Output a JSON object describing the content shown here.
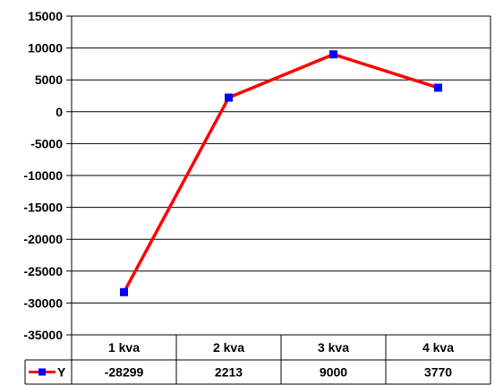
{
  "chart_data": {
    "type": "line",
    "categories": [
      "1 kva",
      "2 kva",
      "3 kva",
      "4 kva"
    ],
    "series": [
      {
        "name": "Y",
        "values": [
          -28299,
          2213,
          9000,
          3770
        ],
        "color": "#ff0000",
        "marker_color": "#0000ff",
        "marker": "square"
      }
    ],
    "value_labels": [
      "-28299",
      "2213",
      "9000",
      "3770"
    ],
    "ylim": [
      -35000,
      15000
    ],
    "yticks": [
      15000,
      10000,
      5000,
      0,
      -5000,
      -10000,
      -15000,
      -20000,
      -25000,
      -30000,
      -35000
    ],
    "ytick_labels": [
      "15000",
      "10000",
      "5000",
      "0",
      "-5000",
      "-10000",
      "-15000",
      "-20000",
      "-25000",
      "-30000",
      "-35000"
    ],
    "grid": "horizontal",
    "data_table": true,
    "legend_placement": "data-table-row-header",
    "title": "",
    "xlabel": "",
    "ylabel": ""
  }
}
